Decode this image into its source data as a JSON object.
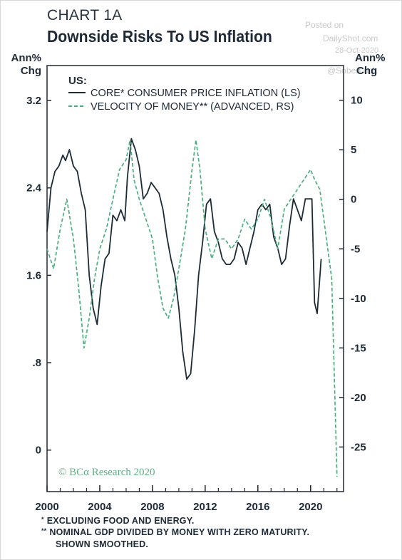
{
  "header": {
    "chart_label": "CHART 1A",
    "title": "Downside Risks To US Inflation"
  },
  "watermark": {
    "line1": "Posted on",
    "line2": "DailyShot.com",
    "line3": "28-Oct-2020",
    "line4": "@SoberLook"
  },
  "source": "© BCα Research 2020",
  "footnotes": {
    "note1_marker": "*",
    "note1_text": "EXCLUDING FOOD AND ENERGY.",
    "note2_marker": "**",
    "note2_text_line1": "NOMINAL GDP DIVIDED BY MONEY WITH ZERO MATURITY.",
    "note2_text_line2": "SHOWN SMOOTHED."
  },
  "colors": {
    "core_line": "#1c2b36",
    "velocity_line": "#4caf80",
    "source_text": "#5fae8a",
    "axis": "#1e2a38"
  },
  "chart_data": {
    "type": "line",
    "legend_header": "US:",
    "legend_position": "top-left",
    "grid": false,
    "left_axis": {
      "unit_label_line1": "Ann%",
      "unit_label_line2": "Chg",
      "ticks": [
        0,
        0.8,
        1.6,
        2.4,
        3.2
      ],
      "tick_labels": [
        "0",
        ".8",
        "1.6",
        "2.4",
        "3.2"
      ],
      "range": [
        -0.38,
        3.52
      ]
    },
    "right_axis": {
      "unit_label_line1": "Ann%",
      "unit_label_line2": "Chg",
      "ticks": [
        -25,
        -20,
        -15,
        -10,
        -5,
        0,
        5,
        10
      ],
      "tick_labels": [
        "-25",
        "-20",
        "-15",
        "-10",
        "-5",
        "0",
        "5",
        "10"
      ],
      "range": [
        -29.5,
        13.5
      ]
    },
    "x_axis": {
      "ticks": [
        2000,
        2004,
        2008,
        2012,
        2016,
        2020
      ],
      "tick_labels": [
        "2000",
        "2004",
        "2008",
        "2012",
        "2016",
        "2020"
      ],
      "range": [
        2000,
        2022.5
      ]
    },
    "series": [
      {
        "name": "CORE* CONSUMER PRICE INFLATION (LS)",
        "axis": "left",
        "style": "solid",
        "x": [
          2000.0,
          2000.3,
          2000.6,
          2000.9,
          2001.2,
          2001.4,
          2001.7,
          2002.0,
          2002.3,
          2002.6,
          2002.9,
          2003.2,
          2003.5,
          2003.8,
          2004.1,
          2004.4,
          2004.7,
          2005.0,
          2005.3,
          2005.6,
          2005.9,
          2006.1,
          2006.4,
          2006.7,
          2007.0,
          2007.3,
          2007.6,
          2007.9,
          2008.2,
          2008.5,
          2008.8,
          2009.1,
          2009.4,
          2009.7,
          2010.0,
          2010.3,
          2010.6,
          2010.9,
          2011.2,
          2011.5,
          2011.8,
          2012.1,
          2012.4,
          2012.7,
          2013.0,
          2013.3,
          2013.6,
          2013.9,
          2014.2,
          2014.5,
          2014.8,
          2015.1,
          2015.4,
          2015.7,
          2016.0,
          2016.3,
          2016.6,
          2016.9,
          2017.2,
          2017.5,
          2017.8,
          2018.1,
          2018.4,
          2018.7,
          2019.0,
          2019.3,
          2019.6,
          2019.9,
          2020.1,
          2020.3,
          2020.5,
          2020.8
        ],
        "values": [
          2.0,
          2.4,
          2.55,
          2.6,
          2.7,
          2.65,
          2.75,
          2.6,
          2.55,
          2.35,
          2.2,
          1.6,
          1.3,
          1.15,
          1.5,
          1.75,
          1.8,
          2.15,
          2.1,
          2.2,
          2.1,
          2.5,
          2.85,
          2.75,
          2.6,
          2.3,
          2.35,
          2.45,
          2.4,
          2.35,
          2.2,
          1.95,
          1.75,
          1.6,
          1.3,
          0.9,
          0.65,
          0.7,
          1.1,
          1.6,
          1.9,
          2.25,
          2.3,
          2.0,
          1.9,
          1.75,
          1.7,
          1.7,
          1.75,
          1.9,
          1.85,
          1.7,
          1.85,
          2.0,
          2.2,
          2.25,
          2.2,
          2.25,
          1.95,
          1.85,
          1.7,
          1.75,
          2.05,
          2.3,
          2.2,
          2.1,
          2.3,
          2.3,
          2.3,
          1.35,
          1.25,
          1.75
        ]
      },
      {
        "name": "VELOCITY OF MONEY** (ADVANCED, RS)",
        "axis": "right",
        "style": "dashed",
        "x": [
          2000.0,
          2000.5,
          2001.0,
          2001.5,
          2002.0,
          2002.4,
          2002.8,
          2003.2,
          2003.6,
          2004.0,
          2004.5,
          2005.0,
          2005.5,
          2006.0,
          2006.3,
          2006.6,
          2007.0,
          2007.5,
          2008.0,
          2008.4,
          2008.8,
          2009.2,
          2009.6,
          2010.0,
          2010.5,
          2011.0,
          2011.3,
          2011.6,
          2012.0,
          2012.5,
          2013.0,
          2013.5,
          2014.0,
          2014.5,
          2015.0,
          2015.5,
          2016.0,
          2016.5,
          2017.0,
          2017.5,
          2018.0,
          2018.5,
          2019.0,
          2019.5,
          2020.0,
          2020.3,
          2020.7,
          2021.0,
          2021.3,
          2021.6,
          2022.0
        ],
        "values": [
          -5,
          -7,
          -3,
          0,
          -4,
          -9,
          -15,
          -12,
          -8,
          -5,
          -3,
          0,
          3,
          4,
          6,
          2,
          0,
          -2,
          -4,
          -8,
          -11,
          -12,
          -10,
          -7,
          -3,
          3,
          6,
          3,
          -3,
          -6,
          -4,
          -4,
          -5,
          -4,
          -2,
          -3,
          -2,
          0,
          -2,
          -5,
          -1,
          0,
          1,
          2,
          3,
          2,
          1,
          -2,
          -5,
          -8,
          -28
        ]
      }
    ]
  }
}
